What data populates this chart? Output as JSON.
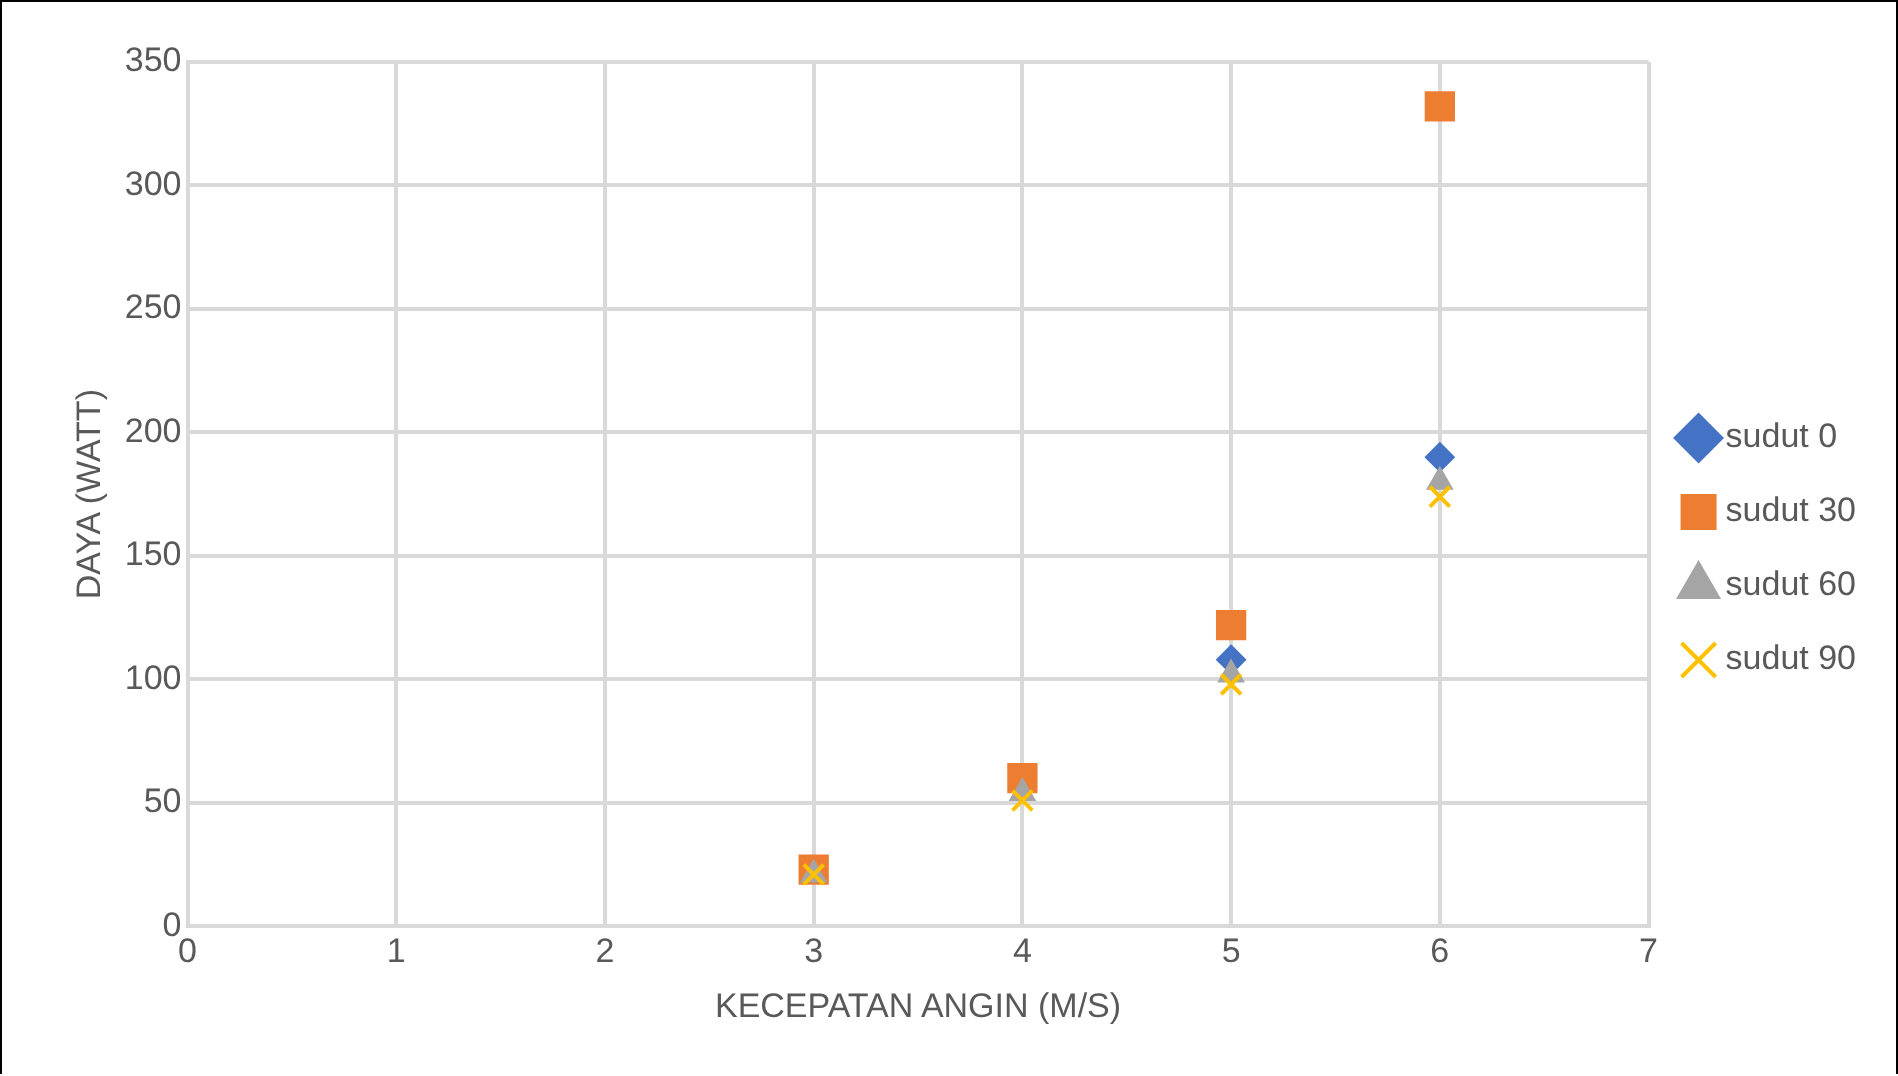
{
  "chart_data": {
    "type": "scatter",
    "xlabel": "KECEPATAN ANGIN (M/S)",
    "ylabel": "DAYA (WATT)",
    "x": [
      3,
      4,
      5,
      6
    ],
    "series": [
      {
        "name": "sudut 0",
        "color": "#4472c4",
        "marker": "diamond",
        "values": [
          null,
          null,
          108,
          190
        ]
      },
      {
        "name": "sudut 30",
        "color": "#ed7d31",
        "marker": "square",
        "values": [
          23,
          60,
          122,
          332
        ]
      },
      {
        "name": "sudut 60",
        "color": "#a5a5a5",
        "marker": "triangle",
        "values": [
          21,
          54,
          102,
          180
        ]
      },
      {
        "name": "sudut 90",
        "color": "#ffc000",
        "marker": "cross",
        "values": [
          21,
          51,
          98,
          174
        ]
      }
    ],
    "xlim": [
      0,
      7
    ],
    "xticks": [
      0,
      1,
      2,
      3,
      4,
      5,
      6,
      7
    ],
    "ylim": [
      0,
      350
    ],
    "yticks": [
      0,
      50,
      100,
      150,
      200,
      250,
      300,
      350
    ],
    "grid": true,
    "legend": "right"
  }
}
